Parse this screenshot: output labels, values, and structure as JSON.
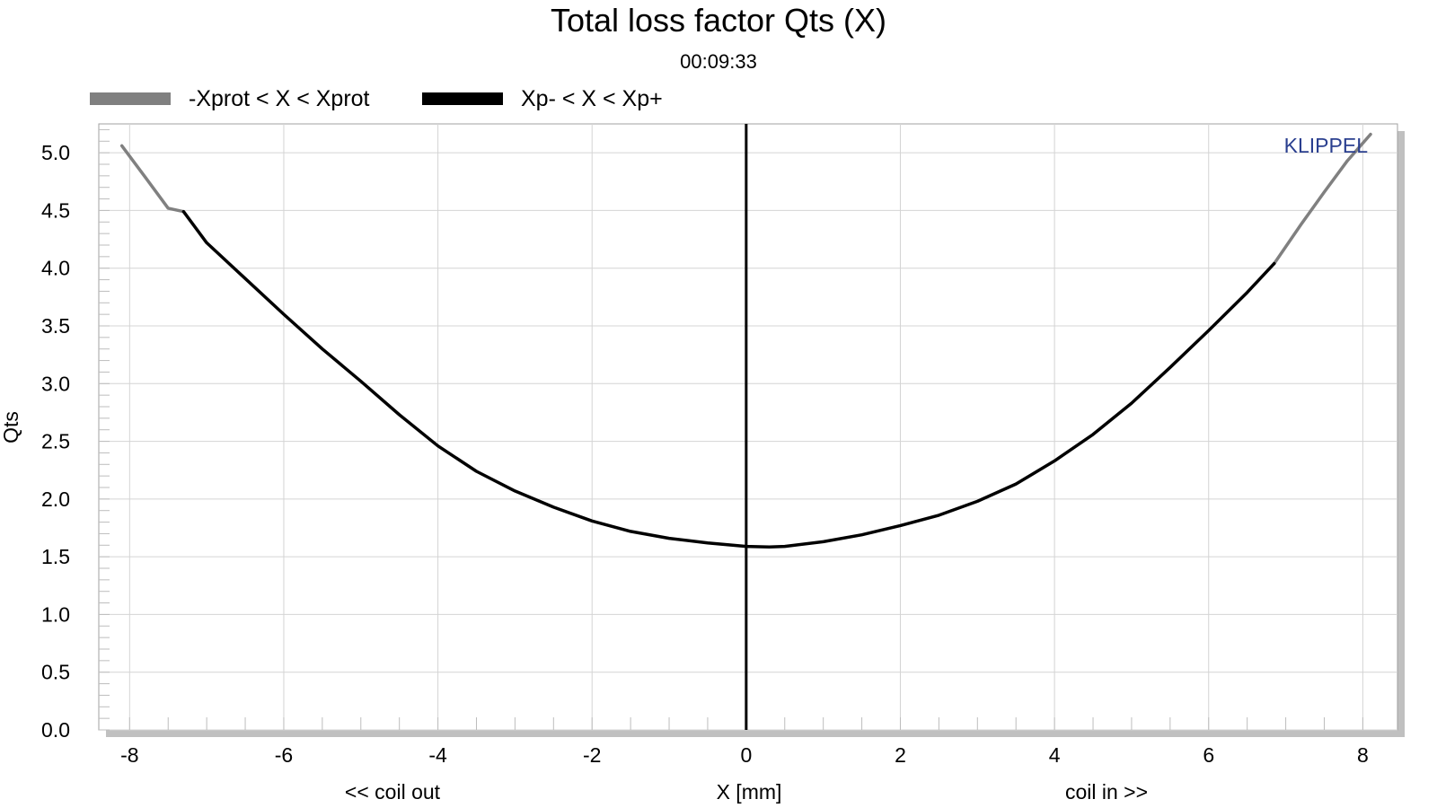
{
  "chart_data": {
    "type": "line",
    "title": "Total loss factor Qts (X)",
    "subtitle": "00:09:33",
    "brand": "KLIPPEL",
    "xlabel": "X [mm]",
    "xlabel_left": "<< coil out",
    "xlabel_right": "coil in >>",
    "ylabel": "Qts",
    "xlim": [
      -8.4,
      8.45
    ],
    "ylim": [
      0.0,
      5.25
    ],
    "x_ticks": [
      -8,
      -6,
      -4,
      -2,
      0,
      2,
      4,
      6,
      8
    ],
    "y_ticks": [
      0.0,
      0.5,
      1.0,
      1.5,
      2.0,
      2.5,
      3.0,
      3.5,
      4.0,
      4.5,
      5.0
    ],
    "x_tick_labels": [
      "-8",
      "-6",
      "-4",
      "-2",
      "0",
      "2",
      "4",
      "6",
      "8"
    ],
    "y_tick_labels": [
      "0.0",
      "0.5",
      "1.0",
      "1.5",
      "2.0",
      "2.5",
      "3.0",
      "3.5",
      "4.0",
      "4.5",
      "5.0"
    ],
    "grid": true,
    "legend_position": "top-left",
    "vertical_marker_x": 0,
    "series": [
      {
        "name": "-Xprot < X < Xprot",
        "color": "#808080",
        "x": [
          -8.1,
          -7.8,
          -7.5,
          -7.3,
          6.85,
          7.2,
          7.5,
          7.8,
          8.1
        ],
        "y": [
          5.06,
          4.79,
          4.52,
          4.49,
          4.04,
          4.38,
          4.66,
          4.93,
          5.16
        ]
      },
      {
        "name": "Xp- < X < Xp+",
        "color": "#000000",
        "x": [
          -7.3,
          -7.0,
          -6.5,
          -6.0,
          -5.5,
          -5.0,
          -4.5,
          -4.0,
          -3.5,
          -3.0,
          -2.5,
          -2.0,
          -1.5,
          -1.0,
          -0.5,
          0.0,
          0.3,
          0.5,
          1.0,
          1.5,
          2.0,
          2.5,
          3.0,
          3.5,
          4.0,
          4.5,
          5.0,
          5.5,
          6.0,
          6.5,
          6.85
        ],
        "y": [
          4.49,
          4.22,
          3.91,
          3.6,
          3.3,
          3.02,
          2.73,
          2.46,
          2.24,
          2.07,
          1.93,
          1.81,
          1.72,
          1.66,
          1.62,
          1.59,
          1.585,
          1.59,
          1.63,
          1.69,
          1.77,
          1.86,
          1.98,
          2.13,
          2.33,
          2.56,
          2.83,
          3.14,
          3.46,
          3.79,
          4.04
        ]
      }
    ]
  }
}
